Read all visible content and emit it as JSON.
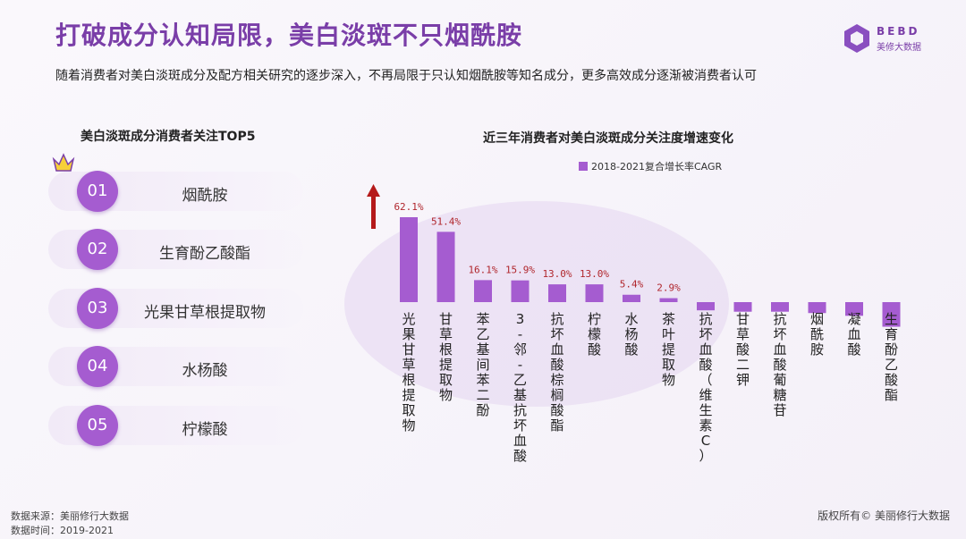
{
  "header": {
    "title": "打破成分认知局限，美白淡斑不只烟酰胺",
    "subtitle": "随着消费者对美白淡斑成分及配方相关研究的逐步深入，不再局限于只认知烟酰胺等知名成分，更多高效成分逐渐被消费者认可"
  },
  "logo": {
    "text": "BEBD",
    "sub": "美修大数据"
  },
  "top5": {
    "title": "美白淡斑成分消费者关注TOP5",
    "items": [
      {
        "num": "01",
        "label": "烟酰胺"
      },
      {
        "num": "02",
        "label": "生育酚乙酸酯"
      },
      {
        "num": "03",
        "label": "光果甘草根提取物"
      },
      {
        "num": "04",
        "label": "水杨酸"
      },
      {
        "num": "05",
        "label": "柠檬酸"
      }
    ]
  },
  "chart_data": {
    "type": "bar",
    "title": "近三年消费者对美白淡斑成分关注度增速变化",
    "legend": "2018-2021复合增长率CAGR",
    "categories": [
      "光果甘草根提取物",
      "甘草根提取物",
      "苯乙基间苯二酚",
      "3-邻-乙基抗坏血酸",
      "抗坏血酸棕榈酸酯",
      "柠檬酸",
      "水杨酸",
      "茶叶提取物",
      "抗坏血酸（维生素C）",
      "甘草酸二钾",
      "抗坏血酸葡糖苷",
      "烟酰胺",
      "凝血酸",
      "生育酚乙酸酯"
    ],
    "values": [
      62.1,
      51.4,
      16.1,
      15.9,
      13.0,
      13.0,
      5.4,
      2.9,
      -6,
      -7,
      -7,
      -8,
      -10,
      -18
    ],
    "data_labels": [
      "62.1%",
      "51.4%",
      "16.1%",
      "15.9%",
      "13.0%",
      "13.0%",
      "5.4%",
      "2.9%",
      "",
      "",
      "",
      "",
      "",
      ""
    ],
    "bar_color": "#a55cd0",
    "label_color": "#b0262c",
    "arrow_color": "#b51a1a"
  },
  "footer": {
    "source": "数据来源：美丽修行大数据",
    "period": "数据时间：2019-2021",
    "copyright": "版权所有© 美丽修行大数据"
  }
}
